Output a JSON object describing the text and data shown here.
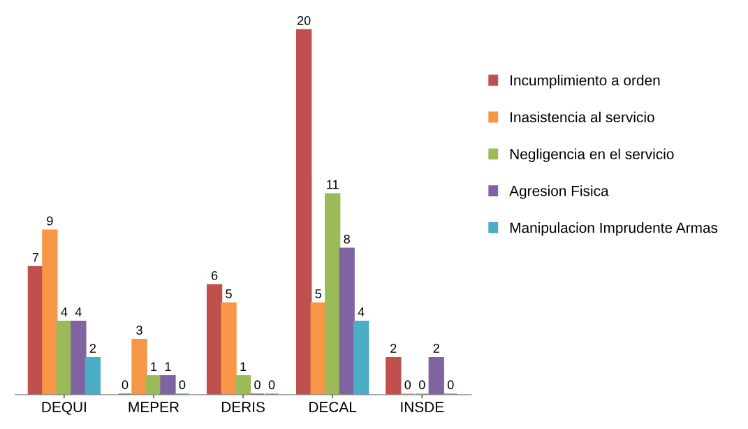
{
  "chart_data": {
    "type": "bar",
    "categories": [
      "DEQUI",
      "MEPER",
      "DERIS",
      "DECAL",
      "INSDE"
    ],
    "series": [
      {
        "name": "Incumplimiento a orden",
        "color": "#c0504d",
        "values": [
          7,
          0,
          6,
          20,
          2
        ]
      },
      {
        "name": "Inasistencia al servicio",
        "color": "#f79646",
        "values": [
          9,
          3,
          5,
          5,
          0
        ]
      },
      {
        "name": "Negligencia en el servicio",
        "color": "#9bbb59",
        "values": [
          4,
          1,
          1,
          11,
          0
        ]
      },
      {
        "name": "Agresion Fisica",
        "color": "#8064a2",
        "values": [
          4,
          1,
          0,
          8,
          2
        ]
      },
      {
        "name": "Manipulacion Imprudente Armas",
        "color": "#4bacc6",
        "values": [
          2,
          0,
          0,
          4,
          0
        ]
      }
    ],
    "data_labels": true,
    "legend": "right",
    "grid": false
  }
}
